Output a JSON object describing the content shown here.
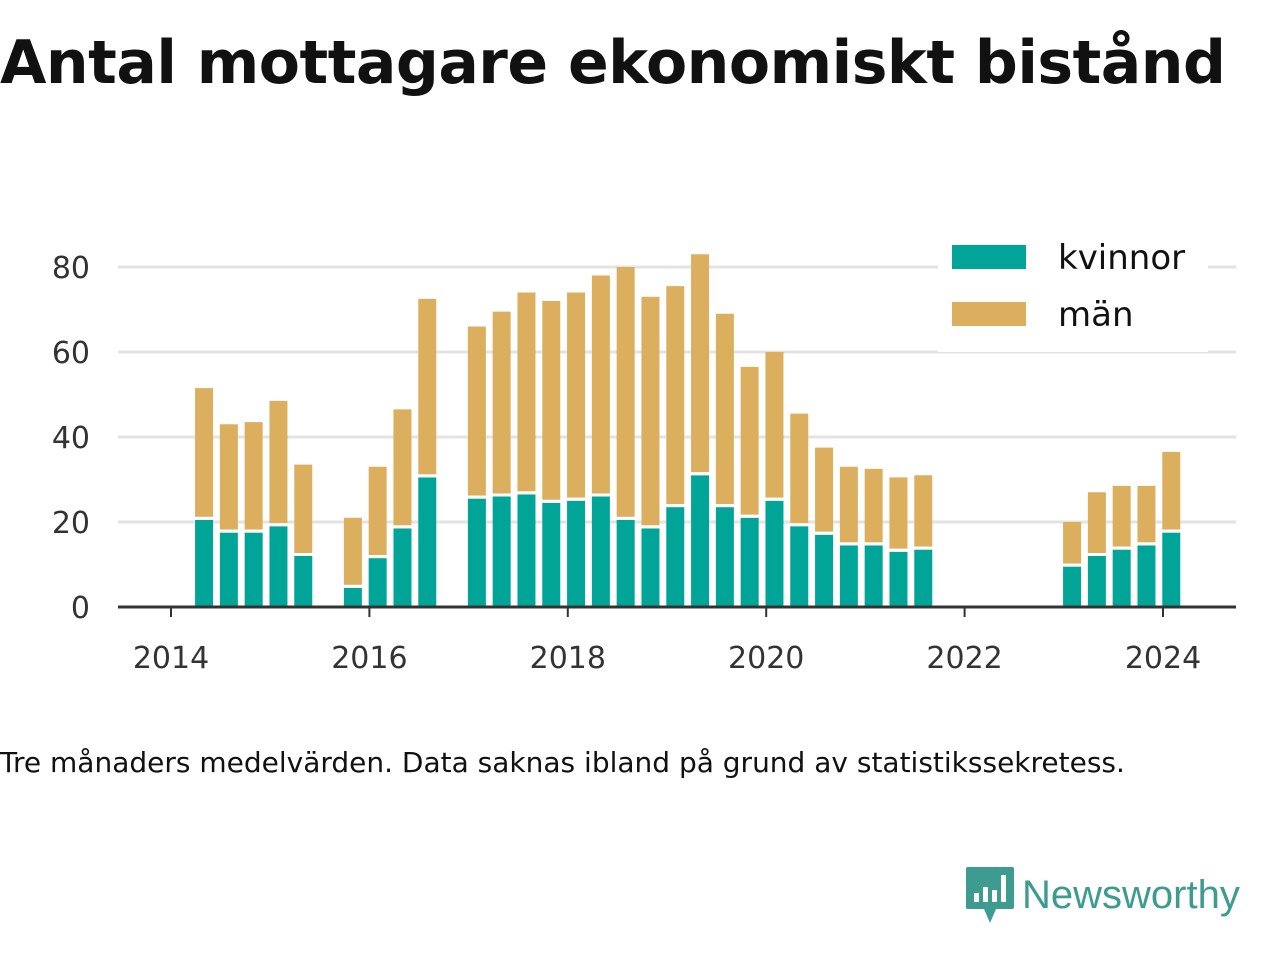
{
  "title": "Antal mottagare ekonomiskt bistånd",
  "caption": "Tre månaders medelvärden. Data saknas ibland på grund av statistikssekretess.",
  "brand": {
    "name": "Newsworthy",
    "logo_icon": "newsworthy-logo-icon"
  },
  "colors": {
    "kvinnor": "#00a598",
    "man": "#dcaf5f",
    "grid": "#e3e3e3",
    "axis": "#333333"
  },
  "chart_data": {
    "type": "bar",
    "stacked": true,
    "x_ticks": [
      "2014",
      "2016",
      "2018",
      "2020",
      "2022",
      "2024"
    ],
    "y_ticks": [
      "0",
      "20",
      "40",
      "60",
      "80"
    ],
    "ylim": [
      0,
      90
    ],
    "grid": "horizontal",
    "legend": {
      "position": "top-right",
      "items": [
        "kvinnor",
        "män"
      ]
    },
    "x": [
      "2014-05",
      "2014-08",
      "2014-11",
      "2015-02",
      "2015-05",
      "2015-08",
      "2015-11",
      "2016-02",
      "2016-05",
      "2016-08",
      "2016-11",
      "2017-02",
      "2017-05",
      "2017-08",
      "2017-11",
      "2018-02",
      "2018-05",
      "2018-08",
      "2018-11",
      "2019-02",
      "2019-05",
      "2019-08",
      "2019-11",
      "2020-02",
      "2020-05",
      "2020-08",
      "2020-11",
      "2021-02",
      "2021-05",
      "2021-08",
      "2021-11",
      "2022-02",
      "2022-05",
      "2022-08",
      "2022-11",
      "2023-02",
      "2023-05",
      "2023-08",
      "2023-11",
      "2024-02"
    ],
    "series": [
      {
        "name": "kvinnor",
        "values": [
          20.5,
          17.5,
          17.5,
          19,
          12,
          null,
          4.5,
          11.5,
          18.5,
          30.5,
          null,
          25.5,
          26,
          26.5,
          24.5,
          25,
          26,
          20.5,
          18.5,
          23.5,
          31,
          23.5,
          21,
          25,
          19,
          17,
          14.5,
          14.5,
          13,
          13.5,
          null,
          null,
          null,
          null,
          null,
          9.5,
          12,
          13.5,
          14.5,
          17.5
        ]
      },
      {
        "name": "män",
        "values": [
          31,
          25.5,
          26,
          29.5,
          21.5,
          null,
          16.5,
          21.5,
          28,
          42,
          null,
          40.5,
          43.5,
          47.5,
          47.5,
          49,
          52,
          59.5,
          54.5,
          52,
          52,
          45.5,
          35.5,
          35,
          26.5,
          20.5,
          18.5,
          18,
          17.5,
          17.5,
          null,
          null,
          null,
          null,
          null,
          10.5,
          15,
          15,
          14,
          19
        ]
      }
    ]
  }
}
